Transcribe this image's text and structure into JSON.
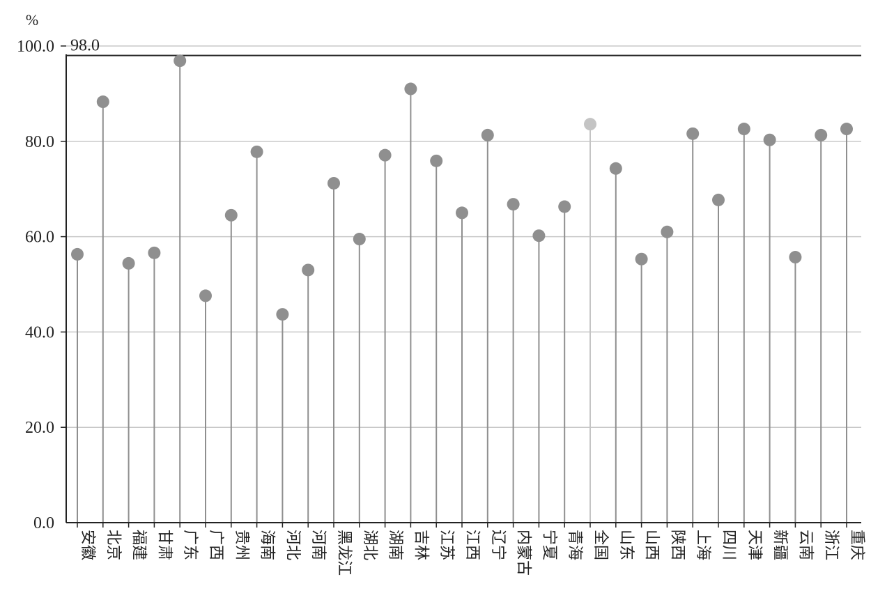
{
  "chart_data": {
    "type": "lollipop",
    "y_unit": "%",
    "ylim": [
      0,
      100
    ],
    "yticks": [
      "0.0",
      "20.0",
      "40.0",
      "60.0",
      "80.0",
      "100.0"
    ],
    "grid": true,
    "reference_line": {
      "value": 98.0,
      "label": "98.0"
    },
    "categories": [
      "安徽",
      "北京",
      "福建",
      "甘肃",
      "广东",
      "广西",
      "贵州",
      "海南",
      "河北",
      "河南",
      "黑龙江",
      "湖北",
      "湖南",
      "吉林",
      "江苏",
      "江西",
      "辽宁",
      "内蒙古",
      "宁夏",
      "青海",
      "全国",
      "山东",
      "山西",
      "陕西",
      "上海",
      "四川",
      "天津",
      "新疆",
      "云南",
      "浙江",
      "重庆"
    ],
    "values": [
      56.3,
      88.3,
      54.4,
      56.6,
      96.9,
      47.6,
      64.5,
      77.8,
      43.7,
      53.0,
      71.2,
      59.5,
      77.1,
      91.0,
      75.9,
      65.0,
      81.3,
      66.8,
      60.2,
      66.3,
      83.6,
      74.3,
      55.3,
      61.0,
      81.6,
      67.7,
      82.6,
      80.3,
      55.7,
      81.3,
      82.6
    ],
    "highlight_category": "全国",
    "colors": {
      "default": "#8f8f8f",
      "highlight": "#c4c4c4",
      "grid": "#c8c8c8",
      "axis": "#222222",
      "reference": "#222222"
    }
  }
}
